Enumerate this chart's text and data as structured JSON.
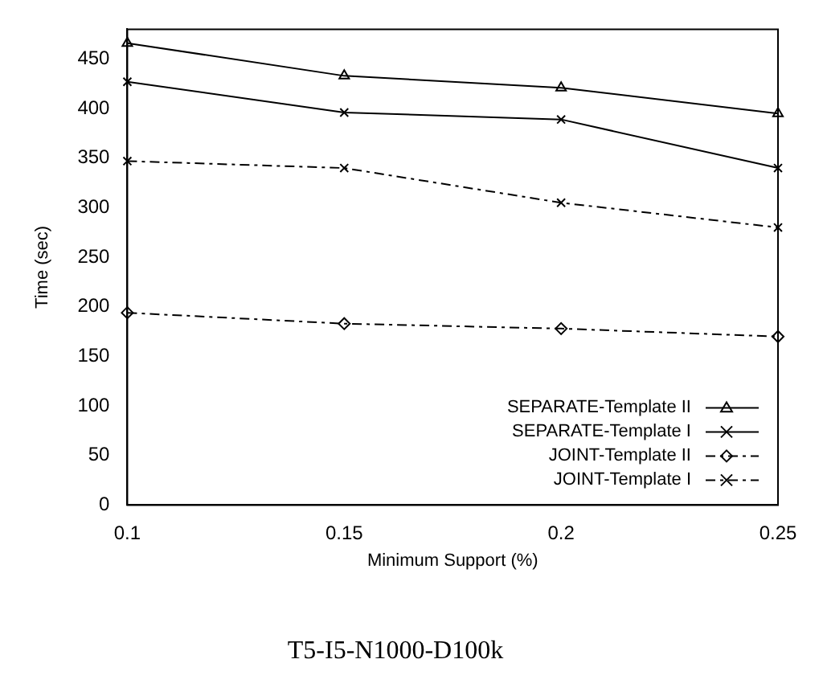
{
  "chart_data": {
    "type": "line",
    "title": "T5-I5-N1000-D100k",
    "xlabel": "Minimum Support (%)",
    "ylabel": "Time (sec)",
    "x": [
      0.1,
      0.15,
      0.2,
      0.25
    ],
    "series": [
      {
        "name": "SEPARATE-Template II",
        "color": "#000000",
        "values": [
          466,
          433,
          421,
          395
        ],
        "marker": "triangle",
        "line_style": "solid"
      },
      {
        "name": "SEPARATE-Template I",
        "color": "#000000",
        "values": [
          427,
          396,
          389,
          340
        ],
        "marker": "cross",
        "line_style": "solid"
      },
      {
        "name": "JOINT-Template II",
        "color": "#000000",
        "values": [
          194,
          183,
          178,
          170
        ],
        "marker": "diamond",
        "line_style": "dashdot"
      },
      {
        "name": "JOINT-Template I",
        "color": "#000000",
        "values": [
          347,
          340,
          305,
          280
        ],
        "marker": "cross",
        "line_style": "dashdot"
      }
    ],
    "xlim": [
      0.1,
      0.25
    ],
    "xticks": [
      0.1,
      0.15,
      0.2,
      0.25
    ],
    "ylim": [
      0,
      480
    ],
    "yticks": [
      0,
      50,
      100,
      150,
      200,
      250,
      300,
      350,
      400,
      450
    ],
    "grid": false,
    "legend": "bottom right"
  }
}
